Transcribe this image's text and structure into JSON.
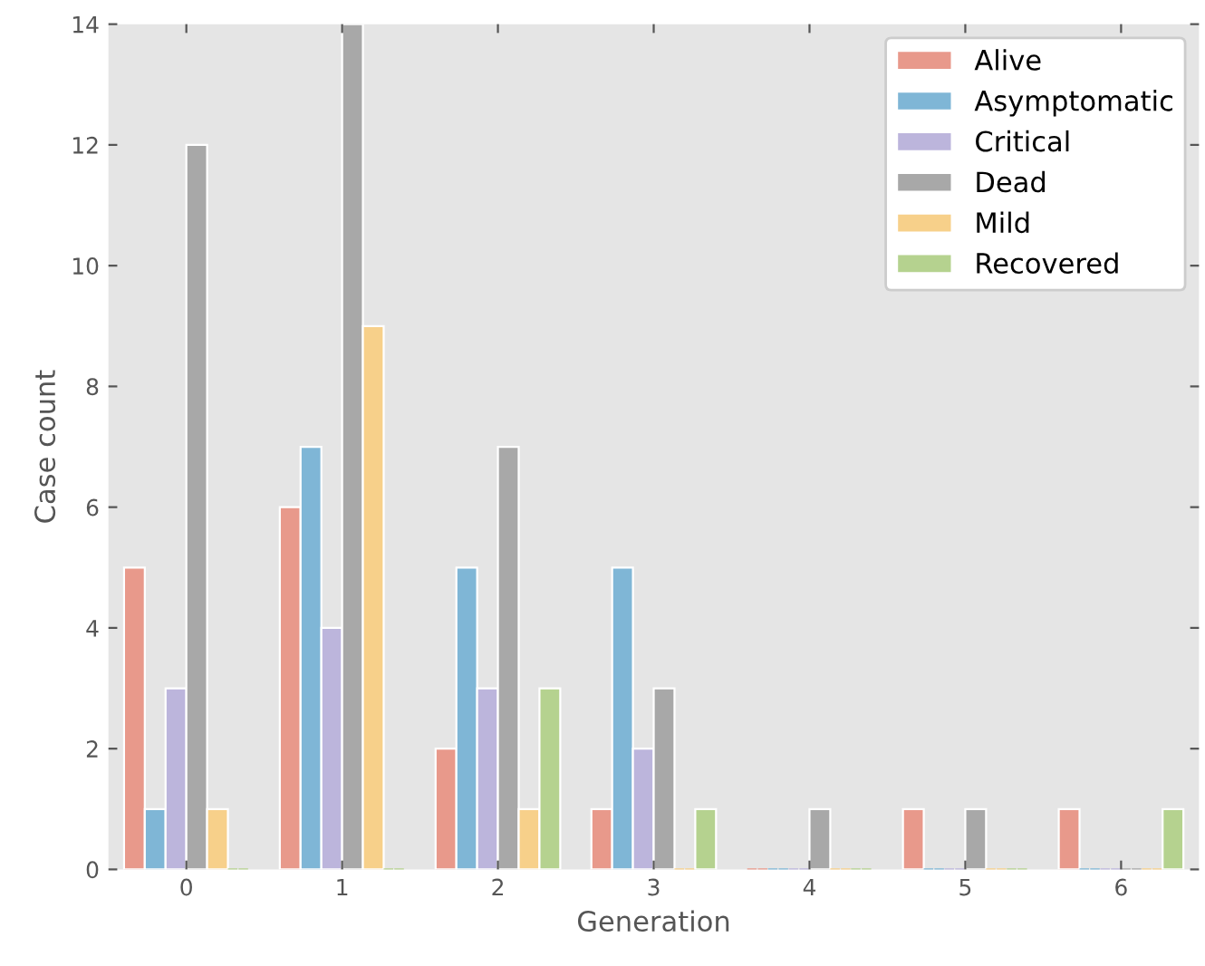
{
  "chart_data": {
    "type": "bar",
    "xlabel": "Generation",
    "ylabel": "Case count",
    "categories": [
      "0",
      "1",
      "2",
      "3",
      "4",
      "5",
      "6"
    ],
    "series": [
      {
        "name": "Alive",
        "color": "#e8998b",
        "values": [
          5,
          6,
          2,
          1,
          0,
          1,
          1
        ]
      },
      {
        "name": "Asymptomatic",
        "color": "#7fb6d6",
        "values": [
          1,
          7,
          5,
          5,
          0,
          0,
          0
        ]
      },
      {
        "name": "Critical",
        "color": "#bcb5dc",
        "values": [
          3,
          4,
          3,
          2,
          0,
          0,
          0
        ]
      },
      {
        "name": "Dead",
        "color": "#a8a8a8",
        "values": [
          12,
          14,
          7,
          3,
          1,
          1,
          0
        ]
      },
      {
        "name": "Mild",
        "color": "#f7d08a",
        "values": [
          1,
          9,
          1,
          0,
          0,
          0,
          0
        ]
      },
      {
        "name": "Recovered",
        "color": "#b5d28f",
        "values": [
          0,
          0,
          3,
          1,
          0,
          0,
          1
        ]
      }
    ],
    "ylim": [
      0,
      14
    ],
    "yticks": [
      0,
      2,
      4,
      6,
      8,
      10,
      12,
      14
    ],
    "grid": false,
    "legend": "top right"
  }
}
